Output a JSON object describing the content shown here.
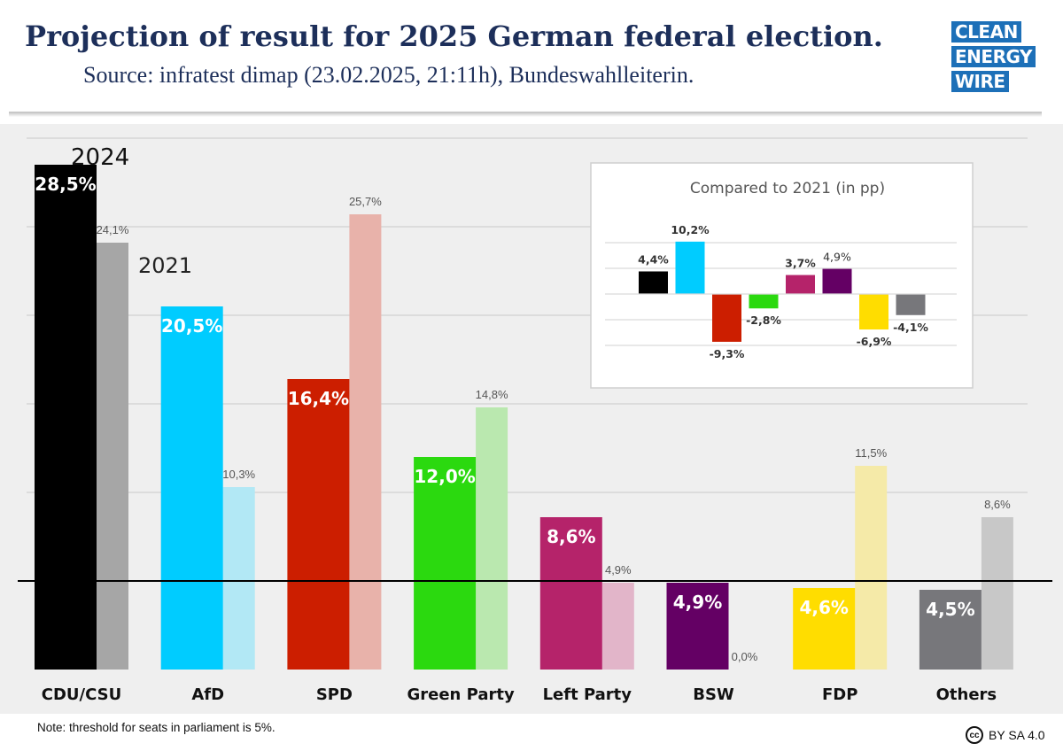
{
  "header": {
    "title": "Projection of result for 2025 German federal election.",
    "subtitle": "Source: infratest dimap (23.02.2025, 21:11h), Bundeswahlleiterin.",
    "logo_lines": [
      "CLEAN",
      "ENERGY",
      "WIRE"
    ],
    "logo_color": "#1d70b8"
  },
  "footer": {
    "note": "Note: threshold for seats in parliament is 5%.",
    "license": "BY SA 4.0",
    "license_icon": "cc-icon"
  },
  "chart_data": [
    {
      "type": "bar",
      "title": "",
      "categories": [
        "CDU/CSU",
        "AfD",
        "SPD",
        "Green Party",
        "Left Party",
        "BSW",
        "FDP",
        "Others"
      ],
      "series": [
        {
          "name": "2024",
          "values": [
            28.5,
            20.5,
            16.4,
            12.0,
            8.6,
            4.9,
            4.6,
            4.5
          ],
          "labels": [
            "28,5%",
            "20,5%",
            "16,4%",
            "12,0%",
            "8,6%",
            "4,9%",
            "4,6%",
            "4,5%"
          ],
          "colors": [
            "#000000",
            "#00ccff",
            "#cc1e00",
            "#2bd90f",
            "#b5236a",
            "#640064",
            "#ffdd00",
            "#77777b"
          ]
        },
        {
          "name": "2021",
          "values": [
            24.1,
            10.3,
            25.7,
            14.8,
            4.9,
            0.0,
            11.5,
            8.6
          ],
          "labels": [
            "24,1%",
            "10,3%",
            "25,7%",
            "14,8%",
            "4,9%",
            "0,0%",
            "11,5%",
            "8,6%"
          ],
          "colors": [
            "#a6a6a6",
            "#b2e8f5",
            "#e8b2aa",
            "#bae8af",
            "#e2b5c9",
            "#d9c3d9",
            "#f5eaa8",
            "#c8c8c8"
          ]
        }
      ],
      "annotations": [
        "2024",
        "2021"
      ],
      "threshold": 5,
      "ylim": [
        0,
        30
      ],
      "grid": true
    },
    {
      "type": "bar",
      "title": "Compared to 2021 (in pp)",
      "categories": [
        "CDU/CSU",
        "AfD",
        "SPD",
        "Green Party",
        "Left Party",
        "BSW",
        "FDP",
        "Others"
      ],
      "values": [
        4.4,
        10.2,
        -9.3,
        -2.8,
        3.7,
        4.9,
        -6.9,
        -4.1
      ],
      "labels": [
        "4,4%",
        "10,2%",
        "-9,3%",
        "-2,8%",
        "3,7%",
        "4,9%",
        "-6,9%",
        "-4,1%"
      ],
      "colors": [
        "#000000",
        "#00ccff",
        "#cc1e00",
        "#2bd90f",
        "#b5236a",
        "#640064",
        "#ffdd00",
        "#77777b"
      ],
      "ylim": [
        -12,
        12
      ],
      "grid": true
    }
  ]
}
